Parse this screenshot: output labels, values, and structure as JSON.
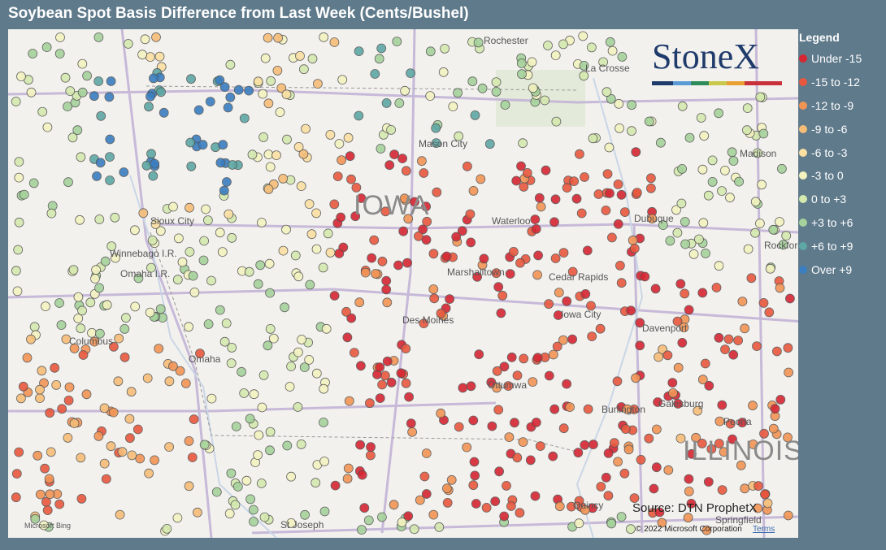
{
  "header": {
    "title": "Soybean Spot Basis Difference from Last Week (Cents/Bushel)"
  },
  "legend": {
    "title": "Legend",
    "items": [
      {
        "label": "Under -15",
        "color": "#d62733"
      },
      {
        "label": "-15 to -12",
        "color": "#e8583e"
      },
      {
        "label": "-12 to -9",
        "color": "#f19556"
      },
      {
        "label": "-9 to -6",
        "color": "#f6bd78"
      },
      {
        "label": "-6 to -3",
        "color": "#fbe0a2"
      },
      {
        "label": "-3 to 0",
        "color": "#f4f3c0"
      },
      {
        "label": "0 to +3",
        "color": "#d5e9ae"
      },
      {
        "label": "+3 to +6",
        "color": "#a6d39b"
      },
      {
        "label": "+6 to +9",
        "color": "#5ea7a4"
      },
      {
        "label": "Over +9",
        "color": "#3a7ec0"
      }
    ]
  },
  "map": {
    "logo": "StoneX",
    "source": "Source: DTN ProphetX",
    "copyright": "© 2022 Microsoft Corporation",
    "terms": "Terms",
    "provider": "Microsoft Bing",
    "places": [
      "Rochester",
      "La Crosse",
      "Mason City",
      "IOWA",
      "Waterloo",
      "Dubuque",
      "Sioux City",
      "Winnebago I.R.",
      "Omaha I.R.",
      "Marshalltown",
      "Cedar Rapids",
      "Iowa City",
      "Davenport",
      "Des Moines",
      "Columbus",
      "Omaha",
      "Ottumwa",
      "Burlington",
      "Galesburg",
      "Peoria",
      "ILLINOIS",
      "St Joseph",
      "Quincy",
      "Springfield",
      "Madison",
      "Rockford"
    ]
  }
}
